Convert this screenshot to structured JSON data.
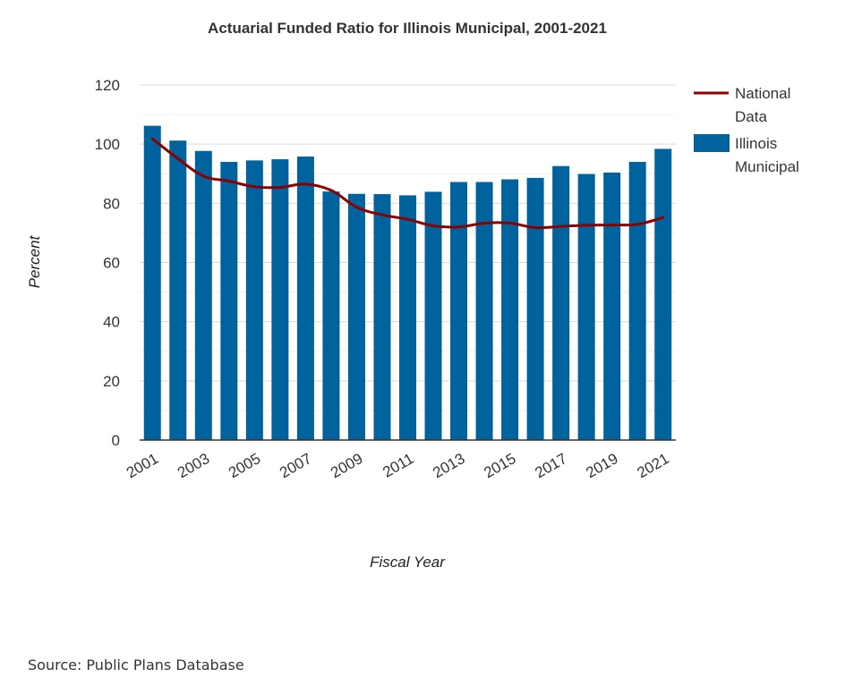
{
  "chart_data": {
    "type": "bar",
    "title": "Actuarial Funded Ratio for Illinois Municipal, 2001-2021",
    "xlabel": "Fiscal Year",
    "ylabel": "Percent",
    "ylim": [
      0,
      120
    ],
    "yticks": [
      0,
      20,
      40,
      60,
      80,
      100,
      120
    ],
    "grid": true,
    "legend_position": "top-right",
    "categories": [
      "2001",
      "2002",
      "2003",
      "2004",
      "2005",
      "2006",
      "2007",
      "2008",
      "2009",
      "2010",
      "2011",
      "2012",
      "2013",
      "2014",
      "2015",
      "2016",
      "2017",
      "2018",
      "2019",
      "2020",
      "2021"
    ],
    "x_tick_labels": [
      "2001",
      "2003",
      "2005",
      "2007",
      "2009",
      "2011",
      "2013",
      "2015",
      "2017",
      "2019",
      "2021"
    ],
    "series": [
      {
        "name": "Illinois Municipal",
        "type": "bar",
        "color": "#00639e",
        "values": [
          106.2,
          101.2,
          97.7,
          94.0,
          94.5,
          94.9,
          95.8,
          84.0,
          83.2,
          83.1,
          82.7,
          83.9,
          87.2,
          87.2,
          88.1,
          88.6,
          92.6,
          89.9,
          90.4,
          94.0,
          98.4
        ]
      },
      {
        "name": "National Data",
        "type": "line",
        "color": "#8b0000",
        "values": [
          101.8,
          95.1,
          89.2,
          87.5,
          85.6,
          85.4,
          86.5,
          84.4,
          78.7,
          76.1,
          74.6,
          72.4,
          72.0,
          73.3,
          73.3,
          71.8,
          72.2,
          72.6,
          72.7,
          72.9,
          75.2
        ]
      }
    ]
  },
  "source": "Source: Public Plans Database"
}
